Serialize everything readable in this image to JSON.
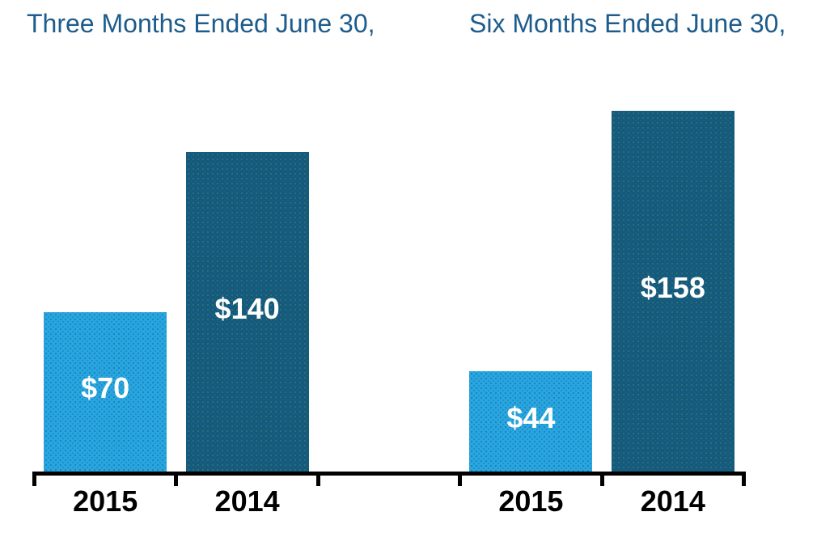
{
  "chart_data": {
    "type": "bar",
    "value_prefix": "$",
    "groups": [
      {
        "title": "Three Months Ended June 30,",
        "bars": [
          {
            "category": "2015",
            "series": "2015",
            "value": 70,
            "label": "$70"
          },
          {
            "category": "2014",
            "series": "2014",
            "value": 140,
            "label": "$140"
          }
        ]
      },
      {
        "title": "Six Months Ended June 30,",
        "bars": [
          {
            "category": "2015",
            "series": "2015",
            "value": 44,
            "label": "$44"
          },
          {
            "category": "2014",
            "series": "2014",
            "value": 158,
            "label": "$158"
          }
        ]
      }
    ],
    "x_axis": {
      "tick_count": 6,
      "category_labels": [
        "2015",
        "2014",
        "2015",
        "2014"
      ]
    },
    "colors": {
      "series_2015": "#29A7DF",
      "series_2014": "#14597E",
      "title_text": "#1D5C8C",
      "value_label_text": "#FFFFFF",
      "category_label_text": "#000000",
      "axis_line": "#000000",
      "background": "#FFFFFF"
    }
  }
}
